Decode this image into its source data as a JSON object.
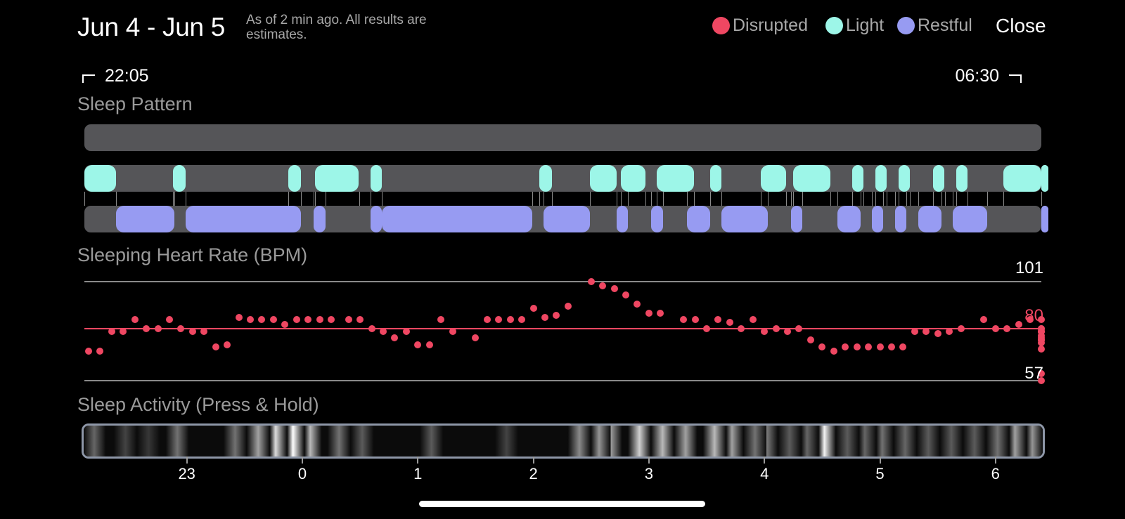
{
  "header": {
    "title": "Jun 4 - Jun 5",
    "subtitle": "As of 2 min ago. All results are estimates.",
    "close_label": "Close"
  },
  "legend": [
    {
      "label": "Disrupted",
      "color": "#ef4762"
    },
    {
      "label": "Light",
      "color": "#9df6e8"
    },
    {
      "label": "Restful",
      "color": "#979bf2"
    }
  ],
  "time_range": {
    "start": "22:05",
    "end": "06:30"
  },
  "sleep_pattern": {
    "label": "Sleep Pattern",
    "light_segments_hours": [
      [
        22.08,
        22.39
      ],
      [
        22.88,
        22.99
      ],
      [
        23.88,
        23.99
      ],
      [
        24.11,
        24.49
      ],
      [
        24.59,
        24.69
      ],
      [
        26.05,
        26.16
      ],
      [
        26.49,
        26.72
      ],
      [
        26.76,
        26.97
      ],
      [
        27.07,
        27.39
      ],
      [
        27.53,
        27.63
      ],
      [
        27.97,
        28.19
      ],
      [
        28.25,
        28.57
      ],
      [
        28.76,
        28.86
      ],
      [
        28.96,
        29.06
      ],
      [
        29.16,
        29.26
      ],
      [
        29.46,
        29.56
      ],
      [
        29.66,
        29.76
      ],
      [
        30.07,
        30.67
      ],
      [
        30.87,
        31.07
      ],
      [
        31.58,
        31.68
      ],
      [
        31.87,
        31.97
      ]
    ],
    "restful_segments_hours": [
      [
        22.39,
        22.89
      ],
      [
        22.99,
        23.99
      ],
      [
        24.1,
        24.2
      ],
      [
        24.59,
        24.69
      ],
      [
        24.69,
        25.99
      ],
      [
        26.09,
        26.49
      ],
      [
        26.72,
        26.82
      ],
      [
        27.02,
        27.12
      ],
      [
        27.33,
        27.53
      ],
      [
        27.63,
        28.03
      ],
      [
        28.23,
        28.33
      ],
      [
        28.63,
        28.83
      ],
      [
        28.93,
        29.03
      ],
      [
        29.13,
        29.23
      ],
      [
        29.33,
        29.53
      ],
      [
        29.63,
        29.93
      ],
      [
        30.63,
        30.83
      ],
      [
        31.03,
        31.53
      ],
      [
        31.73,
        31.93
      ]
    ]
  },
  "heart_rate": {
    "label": "Sleeping Heart Rate (BPM)",
    "max_label": "101",
    "avg_label": "80",
    "min_label": "57",
    "max": 101,
    "avg": 80,
    "min": 57,
    "colors": {
      "avg": "#ef4762",
      "line": "#8a8a8a",
      "dot": "#ef4762"
    },
    "points": [
      [
        22.15,
        70
      ],
      [
        22.25,
        70
      ],
      [
        22.35,
        79
      ],
      [
        22.45,
        79
      ],
      [
        22.55,
        84
      ],
      [
        22.65,
        80
      ],
      [
        22.75,
        80
      ],
      [
        22.85,
        84
      ],
      [
        22.95,
        80
      ],
      [
        23.05,
        79
      ],
      [
        23.15,
        79
      ],
      [
        23.25,
        72
      ],
      [
        23.35,
        73
      ],
      [
        23.45,
        85
      ],
      [
        23.55,
        84
      ],
      [
        23.65,
        84
      ],
      [
        23.75,
        84
      ],
      [
        23.85,
        82
      ],
      [
        23.95,
        84
      ],
      [
        24.05,
        84
      ],
      [
        24.15,
        84
      ],
      [
        24.25,
        84
      ],
      [
        24.4,
        84
      ],
      [
        24.5,
        84
      ],
      [
        24.6,
        80
      ],
      [
        24.7,
        79
      ],
      [
        24.8,
        76
      ],
      [
        24.9,
        79
      ],
      [
        25.0,
        73
      ],
      [
        25.1,
        73
      ],
      [
        25.2,
        84
      ],
      [
        25.3,
        79
      ],
      [
        25.5,
        76
      ],
      [
        25.6,
        84
      ],
      [
        25.7,
        84
      ],
      [
        25.8,
        84
      ],
      [
        25.9,
        84
      ],
      [
        26.0,
        89
      ],
      [
        26.1,
        85
      ],
      [
        26.2,
        86
      ],
      [
        26.3,
        90
      ],
      [
        26.5,
        101
      ],
      [
        26.6,
        99
      ],
      [
        26.7,
        98
      ],
      [
        26.8,
        95
      ],
      [
        26.9,
        91
      ],
      [
        27.0,
        87
      ],
      [
        27.1,
        87
      ],
      [
        27.3,
        84
      ],
      [
        27.4,
        84
      ],
      [
        27.5,
        80
      ],
      [
        27.6,
        84
      ],
      [
        27.7,
        83
      ],
      [
        27.8,
        80
      ],
      [
        27.9,
        84
      ],
      [
        28.0,
        79
      ],
      [
        28.1,
        80
      ],
      [
        28.2,
        79
      ],
      [
        28.3,
        80
      ],
      [
        28.4,
        75
      ],
      [
        28.5,
        72
      ],
      [
        28.6,
        70
      ],
      [
        28.7,
        72
      ],
      [
        28.8,
        72
      ],
      [
        28.9,
        72
      ],
      [
        29.0,
        72
      ],
      [
        29.1,
        72
      ],
      [
        29.2,
        72
      ],
      [
        29.3,
        79
      ],
      [
        29.4,
        79
      ],
      [
        29.5,
        78
      ],
      [
        29.6,
        79
      ],
      [
        29.7,
        80
      ],
      [
        29.9,
        84
      ],
      [
        30.0,
        80
      ],
      [
        30.1,
        80
      ],
      [
        30.2,
        82
      ],
      [
        30.3,
        84
      ],
      [
        30.4,
        84
      ],
      [
        30.5,
        80
      ],
      [
        30.6,
        79
      ],
      [
        30.7,
        79
      ],
      [
        30.8,
        77
      ],
      [
        30.9,
        75
      ],
      [
        31.0,
        76
      ],
      [
        31.1,
        80
      ],
      [
        31.2,
        75
      ],
      [
        31.3,
        74
      ],
      [
        31.4,
        79
      ],
      [
        31.5,
        60
      ],
      [
        31.6,
        57
      ],
      [
        31.7,
        71
      ]
    ]
  },
  "sleep_activity": {
    "label": "Sleep Activity (Press & Hold)",
    "intensity_bands": [
      [
        22.18,
        0.35
      ],
      [
        22.45,
        0.2
      ],
      [
        22.65,
        0.15
      ],
      [
        22.9,
        0.4
      ],
      [
        23.4,
        0.4
      ],
      [
        23.6,
        0.6
      ],
      [
        23.75,
        0.85
      ],
      [
        23.9,
        1.0
      ],
      [
        24.05,
        0.7
      ],
      [
        24.3,
        0.4
      ],
      [
        24.5,
        0.3
      ],
      [
        25.1,
        0.3
      ],
      [
        25.75,
        0.2
      ],
      [
        26.38,
        0.5
      ],
      [
        26.55,
        0.55
      ],
      [
        26.65,
        0.6
      ],
      [
        26.9,
        0.8
      ],
      [
        27.1,
        0.7
      ],
      [
        27.3,
        0.6
      ],
      [
        27.55,
        0.7
      ],
      [
        27.7,
        0.6
      ],
      [
        27.9,
        0.4
      ],
      [
        28.0,
        0.45
      ],
      [
        28.2,
        0.3
      ],
      [
        28.35,
        0.35
      ],
      [
        28.5,
        0.95
      ],
      [
        28.7,
        0.3
      ],
      [
        28.85,
        0.35
      ],
      [
        29.0,
        0.4
      ],
      [
        29.2,
        0.35
      ],
      [
        29.4,
        0.3
      ],
      [
        29.6,
        0.3
      ],
      [
        29.8,
        0.3
      ],
      [
        30.0,
        0.4
      ],
      [
        30.15,
        0.6
      ],
      [
        30.3,
        0.55
      ],
      [
        30.5,
        0.5
      ],
      [
        30.75,
        0.6
      ],
      [
        30.9,
        0.3
      ],
      [
        31.55,
        0.35
      ],
      [
        31.65,
        0.4
      ]
    ],
    "axis_ticks": [
      "23",
      "0",
      "1",
      "2",
      "3",
      "4",
      "5",
      "6"
    ]
  }
}
